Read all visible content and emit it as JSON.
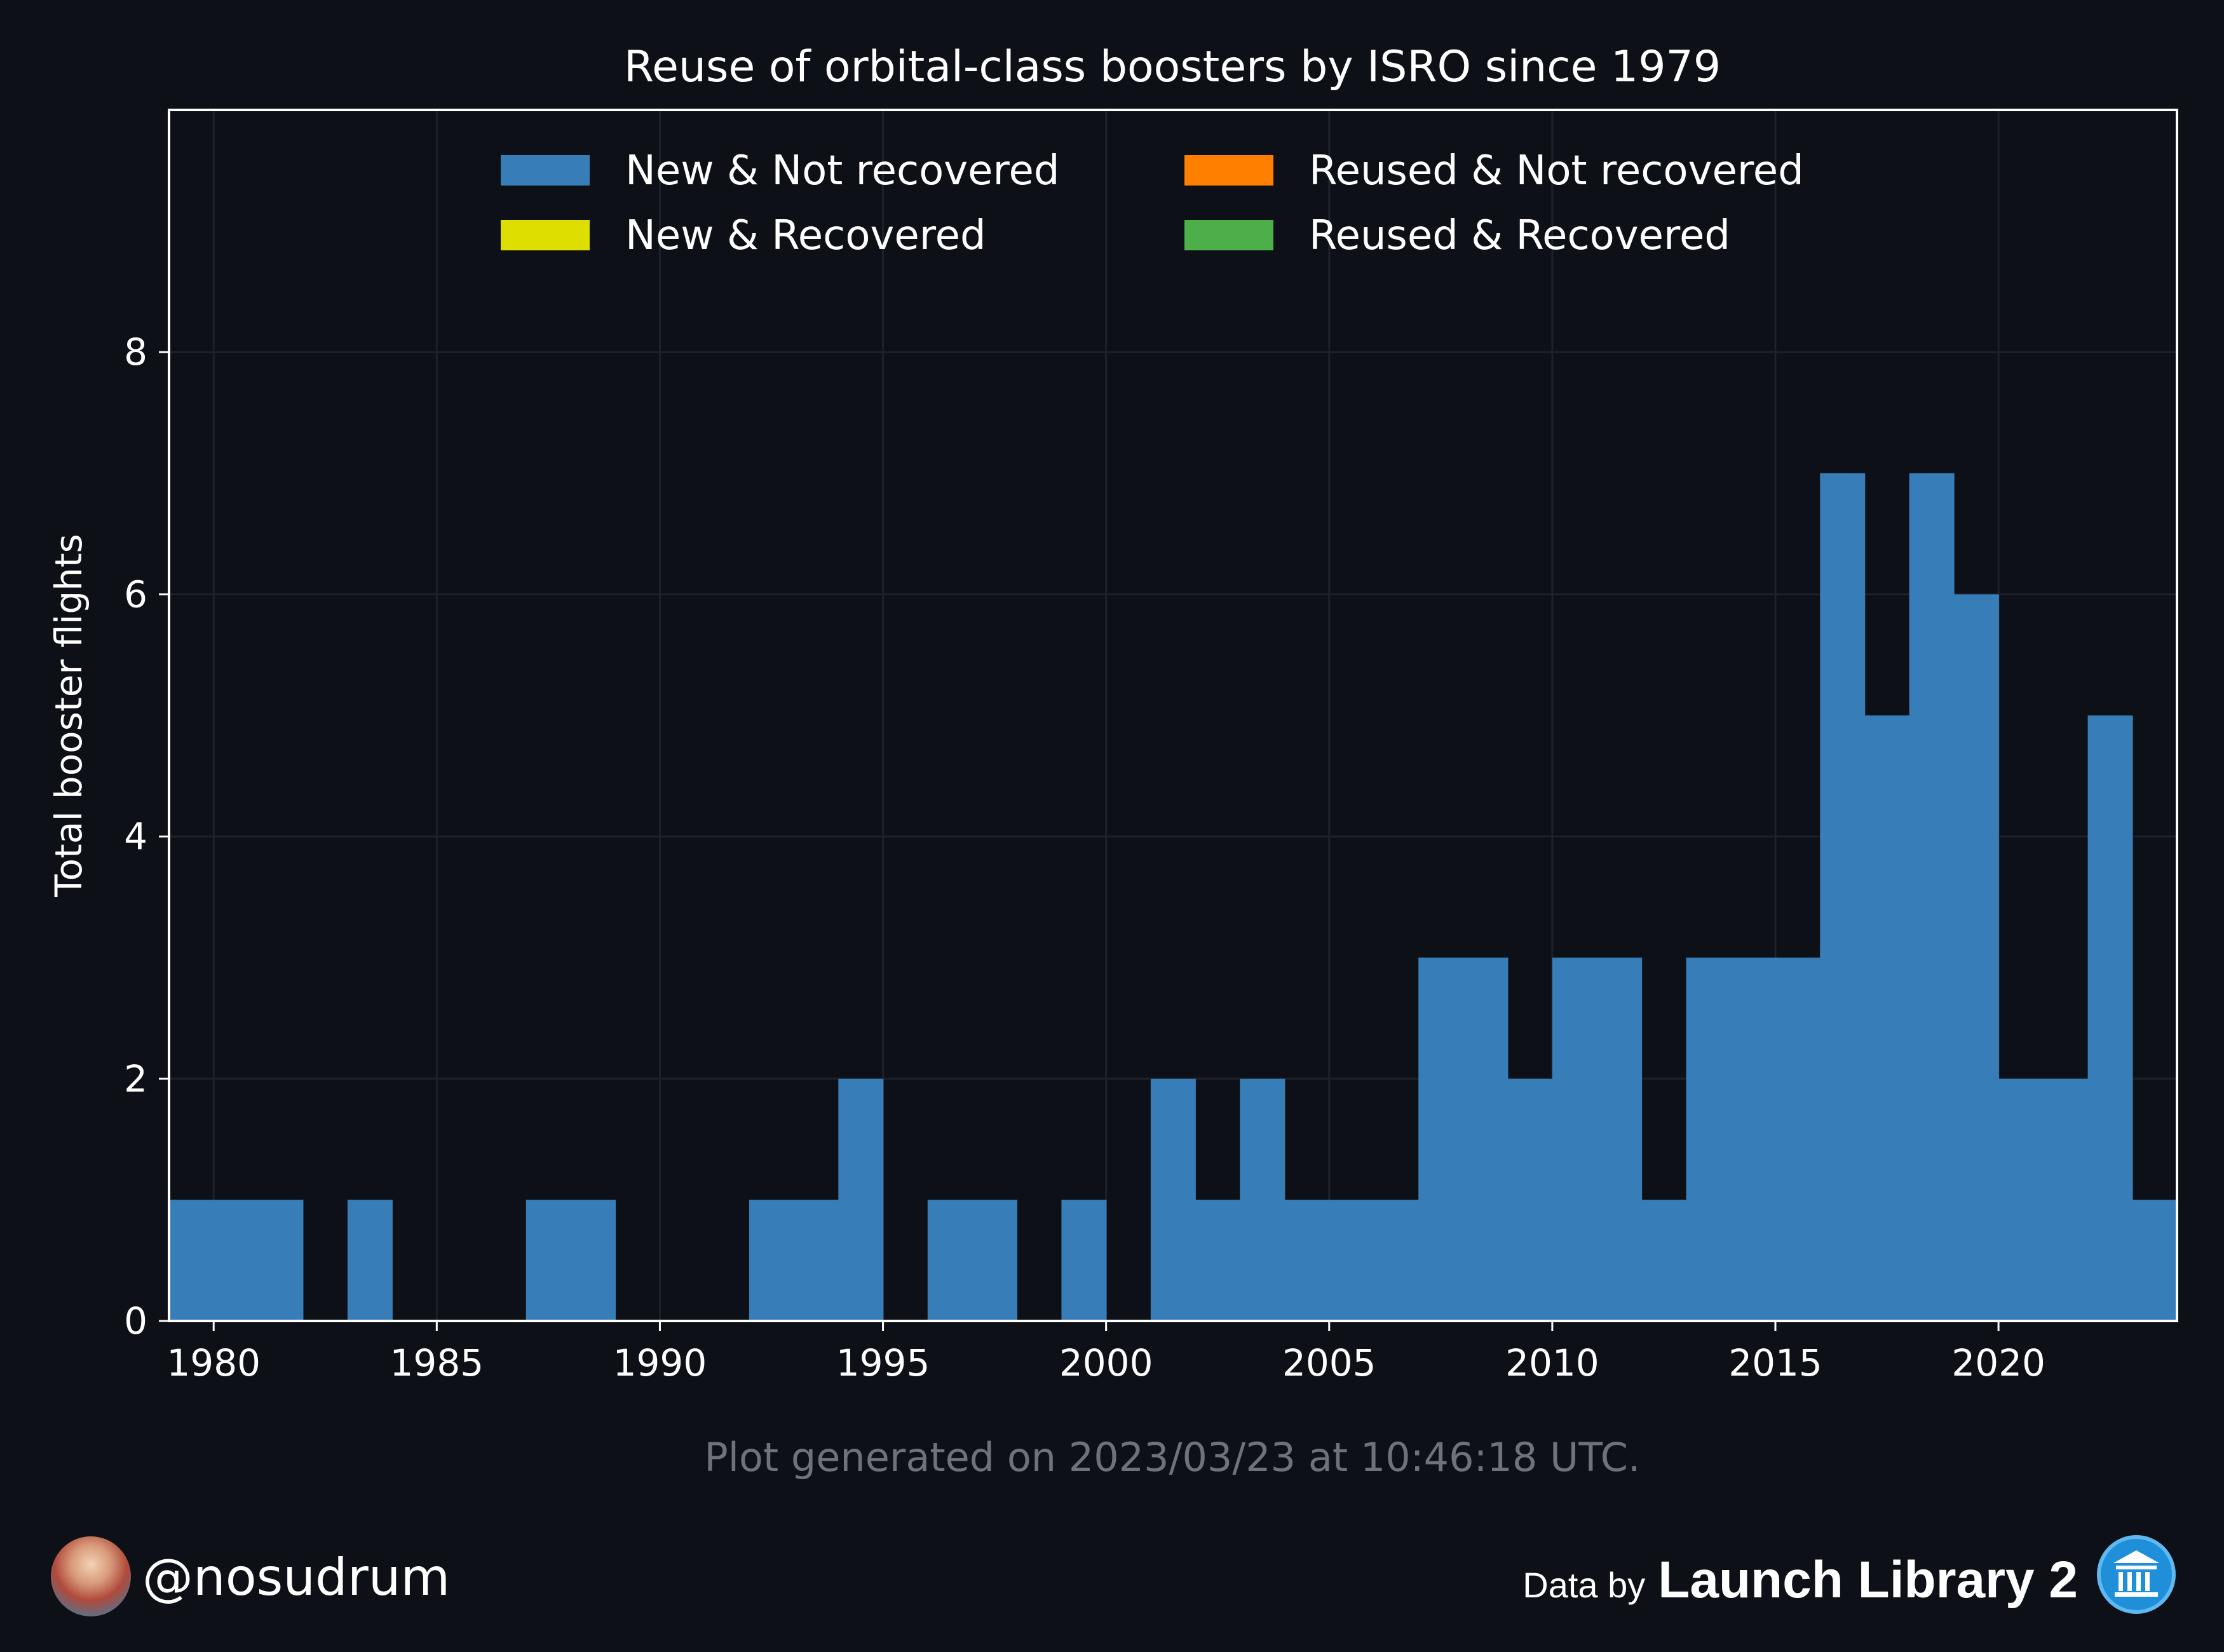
{
  "header": {
    "title": "Reuse of orbital-class boosters by ISRO since 1979"
  },
  "footer": {
    "generated": "Plot generated on 2023/03/23 at 10:46:18 UTC.",
    "handle": "@nosudrum",
    "data_by": "Data by",
    "source": "Launch Library 2"
  },
  "colors": {
    "background": "#0d1017",
    "new_not_recovered": "#377eb8",
    "new_recovered": "#dede00",
    "reused_not_recovered": "#ff7f00",
    "reused_recovered": "#4daf4a"
  },
  "chart_data": {
    "type": "bar",
    "title": "Reuse of orbital-class boosters by ISRO since 1979",
    "xlabel": "",
    "ylabel": "Total booster flights",
    "xlim": [
      1979,
      2024
    ],
    "ylim": [
      0,
      10
    ],
    "xticks": [
      1980,
      1985,
      1990,
      1995,
      2000,
      2005,
      2010,
      2015,
      2020
    ],
    "yticks": [
      0,
      2,
      4,
      6,
      8
    ],
    "grid": true,
    "legend_position": "top",
    "categories": [
      1979,
      1980,
      1981,
      1982,
      1983,
      1984,
      1985,
      1986,
      1987,
      1988,
      1989,
      1990,
      1991,
      1992,
      1993,
      1994,
      1995,
      1996,
      1997,
      1998,
      1999,
      2000,
      2001,
      2002,
      2003,
      2004,
      2005,
      2006,
      2007,
      2008,
      2009,
      2010,
      2011,
      2012,
      2013,
      2014,
      2015,
      2016,
      2017,
      2018,
      2019,
      2020,
      2021,
      2022,
      2023
    ],
    "series": [
      {
        "name": "New & Not recovered",
        "color": "#377eb8",
        "values": [
          1,
          1,
          1,
          0,
          1,
          0,
          0,
          0,
          1,
          1,
          0,
          0,
          0,
          1,
          1,
          2,
          0,
          1,
          1,
          0,
          1,
          0,
          2,
          1,
          2,
          1,
          1,
          1,
          3,
          3,
          2,
          3,
          3,
          1,
          3,
          3,
          3,
          7,
          5,
          7,
          6,
          2,
          2,
          5,
          1
        ]
      },
      {
        "name": "New & Recovered",
        "color": "#dede00",
        "values": [
          0,
          0,
          0,
          0,
          0,
          0,
          0,
          0,
          0,
          0,
          0,
          0,
          0,
          0,
          0,
          0,
          0,
          0,
          0,
          0,
          0,
          0,
          0,
          0,
          0,
          0,
          0,
          0,
          0,
          0,
          0,
          0,
          0,
          0,
          0,
          0,
          0,
          0,
          0,
          0,
          0,
          0,
          0,
          0,
          0
        ]
      },
      {
        "name": "Reused & Not recovered",
        "color": "#ff7f00",
        "values": [
          0,
          0,
          0,
          0,
          0,
          0,
          0,
          0,
          0,
          0,
          0,
          0,
          0,
          0,
          0,
          0,
          0,
          0,
          0,
          0,
          0,
          0,
          0,
          0,
          0,
          0,
          0,
          0,
          0,
          0,
          0,
          0,
          0,
          0,
          0,
          0,
          0,
          0,
          0,
          0,
          0,
          0,
          0,
          0,
          0
        ]
      },
      {
        "name": "Reused & Recovered",
        "color": "#4daf4a",
        "values": [
          0,
          0,
          0,
          0,
          0,
          0,
          0,
          0,
          0,
          0,
          0,
          0,
          0,
          0,
          0,
          0,
          0,
          0,
          0,
          0,
          0,
          0,
          0,
          0,
          0,
          0,
          0,
          0,
          0,
          0,
          0,
          0,
          0,
          0,
          0,
          0,
          0,
          0,
          0,
          0,
          0,
          0,
          0,
          0,
          0
        ]
      }
    ]
  }
}
